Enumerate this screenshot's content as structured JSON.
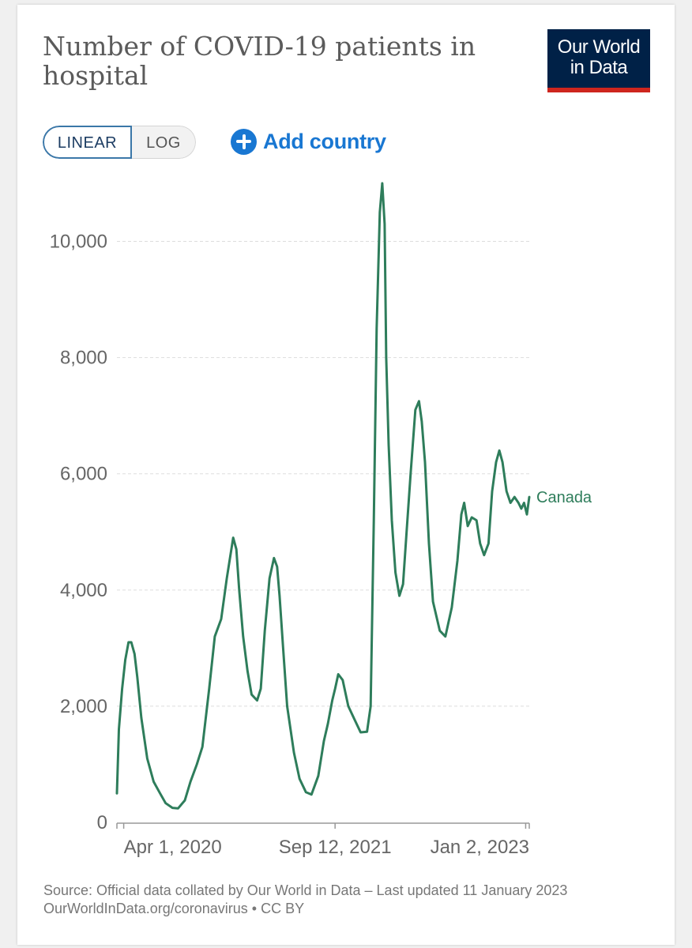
{
  "header": {
    "title": "Number of COVID-19 patients in hospital",
    "logo_line1": "Our World",
    "logo_line2": "in Data"
  },
  "controls": {
    "linear_label": "LINEAR",
    "log_label": "LOG",
    "selected_scale": "linear",
    "add_country_label": "Add country"
  },
  "footer": {
    "source": "Source: Official data collated by Our World in Data – Last updated 11 January 2023",
    "link": "OurWorldInData.org/coronavirus • CC BY"
  },
  "colors": {
    "series": "#2e7d5b",
    "accent": "#1977d2",
    "logo_bg": "#002147",
    "logo_bar": "#ce261e"
  },
  "chart_data": {
    "type": "line",
    "title": "Number of COVID-19 patients in hospital",
    "xlabel": "",
    "ylabel": "",
    "ylim": [
      0,
      11000
    ],
    "yticks": [
      0,
      2000,
      4000,
      6000,
      8000,
      10000
    ],
    "ytick_labels": [
      "0",
      "2,000",
      "4,000",
      "6,000",
      "8,000",
      "10,000"
    ],
    "xlim": [
      "2020-03-15",
      "2023-01-11"
    ],
    "xticks": [
      "2020-04-01",
      "2021-09-12",
      "2023-01-02"
    ],
    "xtick_labels": [
      "Apr 1, 2020",
      "Sep 12, 2021",
      "Jan 2, 2023"
    ],
    "grid": "horizontal dashed",
    "legend": "inline label at line end",
    "series": [
      {
        "name": "Canada",
        "x": [
          "2020-03-15",
          "2020-03-20",
          "2020-03-28",
          "2020-04-05",
          "2020-04-13",
          "2020-04-20",
          "2020-04-28",
          "2020-05-05",
          "2020-05-15",
          "2020-05-30",
          "2020-06-15",
          "2020-07-01",
          "2020-07-15",
          "2020-08-01",
          "2020-08-15",
          "2020-09-01",
          "2020-09-15",
          "2020-10-01",
          "2020-10-15",
          "2020-11-01",
          "2020-11-15",
          "2020-12-01",
          "2020-12-15",
          "2020-12-31",
          "2021-01-08",
          "2021-01-15",
          "2021-01-25",
          "2021-02-05",
          "2021-02-15",
          "2021-03-01",
          "2021-03-10",
          "2021-03-20",
          "2021-04-01",
          "2021-04-12",
          "2021-04-20",
          "2021-04-26",
          "2021-05-05",
          "2021-05-15",
          "2021-06-01",
          "2021-06-15",
          "2021-07-01",
          "2021-07-15",
          "2021-08-01",
          "2021-08-15",
          "2021-08-25",
          "2021-09-05",
          "2021-09-12",
          "2021-09-20",
          "2021-10-01",
          "2021-10-15",
          "2021-11-01",
          "2021-11-15",
          "2021-12-01",
          "2021-12-10",
          "2021-12-18",
          "2021-12-25",
          "2022-01-02",
          "2022-01-08",
          "2022-01-14",
          "2022-01-18",
          "2022-01-24",
          "2022-02-01",
          "2022-02-10",
          "2022-02-20",
          "2022-03-01",
          "2022-03-10",
          "2022-03-20",
          "2022-04-01",
          "2022-04-10",
          "2022-04-17",
          "2022-04-25",
          "2022-05-05",
          "2022-05-15",
          "2022-06-01",
          "2022-06-15",
          "2022-07-01",
          "2022-07-15",
          "2022-07-25",
          "2022-08-01",
          "2022-08-10",
          "2022-08-20",
          "2022-09-01",
          "2022-09-10",
          "2022-09-20",
          "2022-10-01",
          "2022-10-10",
          "2022-10-20",
          "2022-10-28",
          "2022-11-05",
          "2022-11-15",
          "2022-11-25",
          "2022-12-05",
          "2022-12-15",
          "2022-12-22",
          "2022-12-29",
          "2023-01-05",
          "2023-01-11"
        ],
        "values": [
          500,
          1600,
          2300,
          2800,
          3100,
          3100,
          2900,
          2500,
          1800,
          1100,
          700,
          500,
          330,
          250,
          240,
          380,
          700,
          1000,
          1300,
          2300,
          3200,
          3500,
          4200,
          4900,
          4700,
          4000,
          3200,
          2600,
          2200,
          2100,
          2300,
          3300,
          4200,
          4550,
          4400,
          3900,
          3000,
          2000,
          1200,
          750,
          520,
          480,
          800,
          1400,
          1700,
          2100,
          2300,
          2550,
          2450,
          2000,
          1750,
          1550,
          1560,
          2000,
          5200,
          8500,
          10500,
          11000,
          10300,
          8000,
          6500,
          5200,
          4300,
          3900,
          4100,
          5000,
          6000,
          7100,
          7250,
          6900,
          6200,
          4800,
          3800,
          3300,
          3200,
          3700,
          4500,
          5300,
          5500,
          5100,
          5250,
          5200,
          4800,
          4600,
          4800,
          5700,
          6200,
          6400,
          6200,
          5700,
          5500,
          5600,
          5500,
          5400,
          5500,
          5300,
          5600
        ]
      }
    ]
  }
}
